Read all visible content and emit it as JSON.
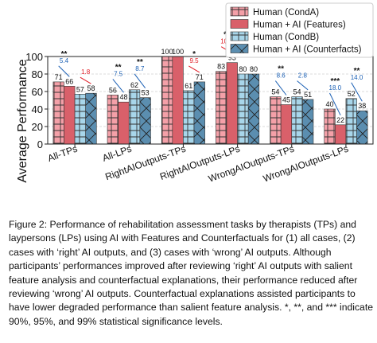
{
  "chart_data": {
    "type": "bar",
    "ylabel": "Average Performance",
    "xlabel": "",
    "ylim": [
      0,
      100
    ],
    "yticks": [
      0,
      20,
      40,
      60,
      80,
      100
    ],
    "grid": true,
    "legend_position": "top-right",
    "categories": [
      "All-TPs",
      "All-LPs",
      "RightAIOutputs-TPs",
      "RightAIOutputs-LPs",
      "WrongAIOutputs-TPs",
      "WrongAIOutputs-LPs"
    ],
    "series": [
      {
        "name": "Human (CondA)",
        "values": [
          71,
          56,
          100,
          83,
          54,
          40
        ],
        "color": "#f4a0a8",
        "hatch": "plus"
      },
      {
        "name": "Human + AI (Features)",
        "values": [
          66,
          48,
          100,
          93,
          45,
          22
        ],
        "color": "#d9606a",
        "hatch": "none"
      },
      {
        "name": "Human (CondB)",
        "values": [
          57,
          62,
          61,
          80,
          54,
          52
        ],
        "color": "#a8d6ea",
        "hatch": "plus"
      },
      {
        "name": "Human + AI (Counterfacts)",
        "values": [
          58,
          53,
          71,
          80,
          51,
          38
        ],
        "color": "#5b8eb0",
        "hatch": "cross"
      }
    ],
    "annotations": [
      {
        "category": 0,
        "pair": "features",
        "text": "5.4",
        "sig": "**",
        "color": "#1a5fb4"
      },
      {
        "category": 0,
        "pair": "counterfacts",
        "text": "1.8",
        "sig": "",
        "color": "#e01b24"
      },
      {
        "category": 1,
        "pair": "features",
        "text": "7.5",
        "sig": "**",
        "color": "#1a5fb4"
      },
      {
        "category": 1,
        "pair": "counterfacts",
        "text": "8.7",
        "sig": "**",
        "color": "#1a5fb4"
      },
      {
        "category": 2,
        "pair": "counterfacts",
        "text": "9.5",
        "sig": "*",
        "color": "#e01b24"
      },
      {
        "category": 3,
        "pair": "features",
        "text": "10.0",
        "sig": "**",
        "color": "#e01b24"
      },
      {
        "category": 4,
        "pair": "features",
        "text": "8.6",
        "sig": "**",
        "color": "#1a5fb4"
      },
      {
        "category": 4,
        "pair": "counterfacts",
        "text": "2.8",
        "sig": "",
        "color": "#1a5fb4"
      },
      {
        "category": 5,
        "pair": "features",
        "text": "18.0",
        "sig": "***",
        "color": "#1a5fb4"
      },
      {
        "category": 5,
        "pair": "counterfacts",
        "text": "14.0",
        "sig": "**",
        "color": "#1a5fb4"
      }
    ]
  },
  "caption": "Figure 2: Performance of rehabilitation assessment tasks by therapists (TPs) and laypersons (LPs) using AI with Features and Counterfactuals for (1) all cases, (2) cases with ‘right’ AI outputs, and (3) cases with ‘wrong’ AI outputs. Although participants’ performances improved after reviewing ‘right’ AI outputs with salient feature analysis and counterfactual explanations, their performance reduced after reviewing ‘wrong’ AI outputs. Counterfactual explanations assisted participants to have lower degraded performance than salient feature analysis. *, **, and *** indicate 90%, 95%, and 99% statistical significance levels."
}
